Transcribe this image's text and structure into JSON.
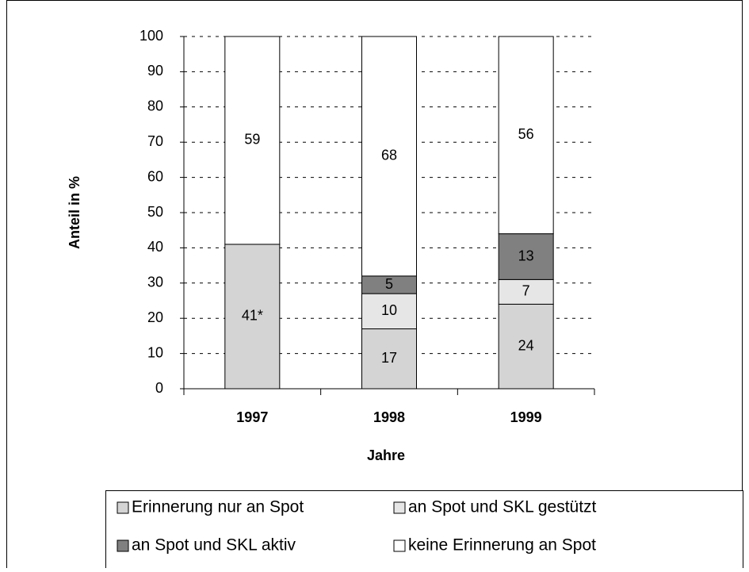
{
  "chart_data": {
    "type": "stacked_bar",
    "x_label": "Jahre",
    "y_label": "Anteil in %",
    "categories": [
      "1997",
      "1998",
      "1999"
    ],
    "series": [
      {
        "name": "Erinnerung nur an Spot",
        "color": "#d4d4d4",
        "values": [
          41,
          17,
          24
        ],
        "value_labels": [
          "41*",
          "17",
          "24"
        ]
      },
      {
        "name": "an Spot und SKL gestützt",
        "color": "#e6e6e6",
        "values": [
          null,
          10,
          7
        ]
      },
      {
        "name": "an Spot und SKL aktiv",
        "color": "#808080",
        "values": [
          null,
          5,
          13
        ]
      },
      {
        "name": "keine Erinnerung an Spot",
        "color": "#ffffff",
        "values": [
          59,
          68,
          56
        ]
      }
    ],
    "ylim": [
      0,
      100
    ],
    "yticks": [
      0,
      10,
      20,
      30,
      40,
      50,
      60,
      70,
      80,
      90,
      100
    ],
    "grid": true
  }
}
